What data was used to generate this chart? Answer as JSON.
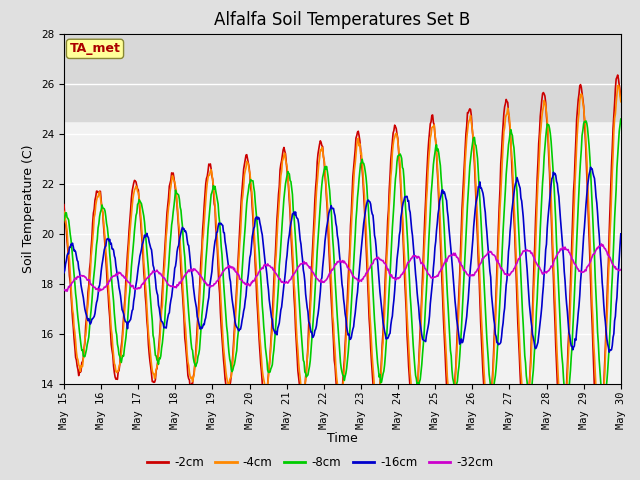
{
  "title": "Alfalfa Soil Temperatures Set B",
  "xlabel": "Time",
  "ylabel": "Soil Temperature (C)",
  "ylim": [
    14,
    28
  ],
  "xlim": [
    0,
    15
  ],
  "x_tick_labels": [
    "May 15",
    "May 16",
    "May 17",
    "May 18",
    "May 19",
    "May 20",
    "May 21",
    "May 22",
    "May 23",
    "May 24",
    "May 25",
    "May 26",
    "May 27",
    "May 28",
    "May 29",
    "May 30"
  ],
  "colors": {
    "-2cm": "#cc0000",
    "-4cm": "#ff8800",
    "-8cm": "#00cc00",
    "-16cm": "#0000cc",
    "-32cm": "#cc00cc"
  },
  "background_color": "#e0e0e0",
  "plot_bg_color": "#f2f2f2",
  "shaded_bg_color": "#d8d8d8",
  "annotation_text": "TA_met",
  "annotation_color": "#aa0000",
  "annotation_bg": "#ffff99",
  "linewidth": 1.2,
  "title_fontsize": 12,
  "label_fontsize": 9,
  "tick_fontsize": 7.5
}
